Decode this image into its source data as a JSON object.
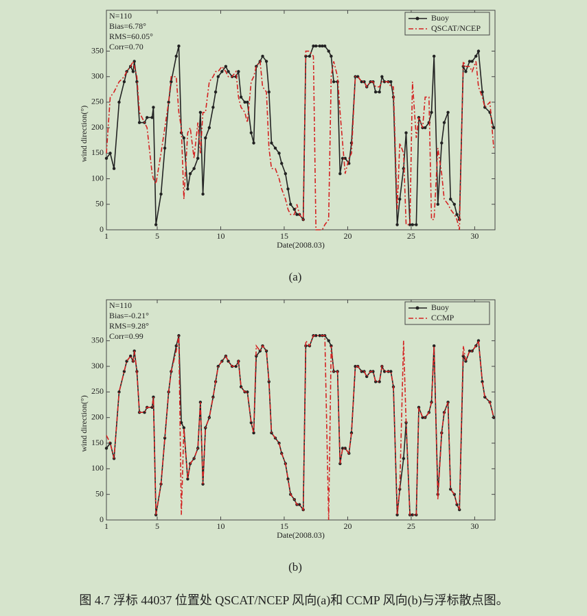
{
  "chart_data": [
    {
      "type": "line",
      "panel": "(a)",
      "xlabel": "Date(2008.03)",
      "ylabel": "wind direction(°)",
      "annotations": [
        "N=110",
        "Bias=6.78°",
        "RMS=60.05°",
        "Corr=0.70"
      ],
      "legend": "upper right",
      "xlim": [
        1,
        31.6
      ],
      "xticks": [
        1,
        5,
        10,
        15,
        20,
        25,
        30
      ],
      "ylim": [
        0,
        430
      ],
      "yticks": [
        0,
        50,
        100,
        150,
        200,
        250,
        300,
        350
      ],
      "x": [
        1.0,
        1.3,
        1.6,
        2.0,
        2.4,
        2.6,
        2.9,
        3.1,
        3.2,
        3.4,
        3.6,
        4.0,
        4.2,
        4.6,
        4.7,
        4.9,
        5.3,
        5.6,
        5.9,
        6.1,
        6.5,
        6.7,
        6.9,
        7.1,
        7.4,
        7.6,
        7.9,
        8.2,
        8.4,
        8.6,
        8.8,
        9.1,
        9.4,
        9.6,
        9.8,
        10.1,
        10.4,
        10.6,
        10.9,
        11.2,
        11.4,
        11.6,
        11.9,
        12.1,
        12.4,
        12.6,
        12.8,
        13.1,
        13.3,
        13.6,
        13.8,
        14.0,
        14.3,
        14.6,
        14.8,
        15.1,
        15.3,
        15.5,
        15.8,
        16.0,
        16.2,
        16.5,
        16.7,
        17.0,
        17.3,
        17.5,
        17.8,
        18.0,
        18.2,
        18.5,
        18.7,
        18.9,
        19.2,
        19.4,
        19.6,
        19.8,
        20.1,
        20.3,
        20.6,
        20.8,
        21.1,
        21.3,
        21.5,
        21.8,
        22.0,
        22.2,
        22.5,
        22.7,
        22.9,
        23.2,
        23.4,
        23.6,
        23.9,
        24.1,
        24.4,
        24.6,
        24.9,
        25.1,
        25.4,
        25.6,
        25.9,
        26.1,
        26.4,
        26.6,
        26.8,
        27.1,
        27.4,
        27.6,
        27.9,
        28.1,
        28.4,
        28.6,
        28.8,
        29.1,
        29.3,
        29.6,
        29.8,
        30.1,
        30.3,
        30.6,
        30.8,
        31.2,
        31.5
      ],
      "series": [
        {
          "name": "Buoy",
          "color": "#222222",
          "linestyle": "solid",
          "marker": true,
          "values": [
            140,
            150,
            120,
            250,
            290,
            310,
            320,
            310,
            330,
            290,
            210,
            210,
            220,
            220,
            240,
            10,
            70,
            160,
            250,
            290,
            340,
            360,
            190,
            180,
            80,
            110,
            120,
            140,
            230,
            70,
            180,
            200,
            240,
            270,
            300,
            310,
            320,
            310,
            300,
            300,
            310,
            260,
            250,
            250,
            190,
            170,
            320,
            330,
            340,
            330,
            270,
            170,
            160,
            150,
            130,
            110,
            80,
            50,
            40,
            30,
            30,
            20,
            340,
            340,
            360,
            360,
            360,
            360,
            360,
            350,
            340,
            290,
            290,
            110,
            140,
            140,
            130,
            170,
            300,
            300,
            290,
            290,
            280,
            290,
            290,
            270,
            270,
            300,
            290,
            290,
            290,
            260,
            10,
            60,
            120,
            190,
            10,
            10,
            10,
            220,
            200,
            200,
            210,
            230,
            340,
            50,
            170,
            210,
            230,
            60,
            50,
            30,
            20,
            320,
            310,
            330,
            330,
            340,
            350,
            270,
            240,
            230,
            200
          ]
        },
        {
          "name": "QSCAT/NCEP",
          "color": "#d42020",
          "linestyle": "dashdot",
          "marker": false,
          "values": [
            150,
            260,
            270,
            290,
            300,
            310,
            320,
            330,
            320,
            300,
            230,
            210,
            200,
            110,
            100,
            90,
            150,
            200,
            250,
            300,
            300,
            230,
            200,
            60,
            190,
            200,
            140,
            210,
            150,
            230,
            230,
            290,
            300,
            310,
            310,
            320,
            310,
            300,
            300,
            310,
            260,
            240,
            230,
            210,
            290,
            300,
            320,
            330,
            280,
            270,
            160,
            120,
            120,
            100,
            80,
            60,
            40,
            30,
            30,
            50,
            30,
            20,
            350,
            350,
            340,
            0,
            0,
            0,
            10,
            20,
            300,
            330,
            300,
            230,
            170,
            110,
            140,
            150,
            300,
            300,
            290,
            290,
            280,
            290,
            290,
            280,
            280,
            290,
            290,
            290,
            280,
            280,
            40,
            170,
            150,
            10,
            10,
            290,
            180,
            220,
            200,
            260,
            260,
            20,
            20,
            160,
            110,
            60,
            50,
            40,
            30,
            20,
            0,
            330,
            320,
            320,
            310,
            330,
            280,
            260,
            240,
            250,
            160
          ]
        }
      ]
    },
    {
      "type": "line",
      "panel": "(b)",
      "xlabel": "Date(2008.03)",
      "ylabel": "wind direction(°)",
      "annotations": [
        "N=110",
        "Bias=-0.21°",
        "RMS=9.28°",
        "Corr=0.99"
      ],
      "legend": "upper right",
      "xlim": [
        1,
        31.6
      ],
      "xticks": [
        1,
        5,
        10,
        15,
        20,
        25,
        30
      ],
      "ylim": [
        0,
        430
      ],
      "yticks": [
        0,
        50,
        100,
        150,
        200,
        250,
        300,
        350
      ],
      "x": [
        1.0,
        1.3,
        1.6,
        2.0,
        2.4,
        2.6,
        2.9,
        3.1,
        3.2,
        3.4,
        3.6,
        4.0,
        4.2,
        4.6,
        4.7,
        4.9,
        5.3,
        5.6,
        5.9,
        6.1,
        6.5,
        6.7,
        6.9,
        7.1,
        7.4,
        7.6,
        7.9,
        8.2,
        8.4,
        8.6,
        8.8,
        9.1,
        9.4,
        9.6,
        9.8,
        10.1,
        10.4,
        10.6,
        10.9,
        11.2,
        11.4,
        11.6,
        11.9,
        12.1,
        12.4,
        12.6,
        12.8,
        13.1,
        13.3,
        13.6,
        13.8,
        14.0,
        14.3,
        14.6,
        14.8,
        15.1,
        15.3,
        15.5,
        15.8,
        16.0,
        16.2,
        16.5,
        16.7,
        17.0,
        17.3,
        17.5,
        17.8,
        18.0,
        18.2,
        18.5,
        18.7,
        18.9,
        19.2,
        19.4,
        19.6,
        19.8,
        20.1,
        20.3,
        20.6,
        20.8,
        21.1,
        21.3,
        21.5,
        21.8,
        22.0,
        22.2,
        22.5,
        22.7,
        22.9,
        23.2,
        23.4,
        23.6,
        23.9,
        24.1,
        24.4,
        24.6,
        24.9,
        25.1,
        25.4,
        25.6,
        25.9,
        26.1,
        26.4,
        26.6,
        26.8,
        27.1,
        27.4,
        27.6,
        27.9,
        28.1,
        28.4,
        28.6,
        28.8,
        29.1,
        29.3,
        29.6,
        29.8,
        30.1,
        30.3,
        30.6,
        30.8,
        31.2,
        31.5
      ],
      "series": [
        {
          "name": "Buoy",
          "color": "#222222",
          "linestyle": "solid",
          "marker": true,
          "values": [
            140,
            150,
            120,
            250,
            290,
            310,
            320,
            310,
            330,
            290,
            210,
            210,
            220,
            220,
            240,
            10,
            70,
            160,
            250,
            290,
            340,
            360,
            190,
            180,
            80,
            110,
            120,
            140,
            230,
            70,
            180,
            200,
            240,
            270,
            300,
            310,
            320,
            310,
            300,
            300,
            310,
            260,
            250,
            250,
            190,
            170,
            320,
            330,
            340,
            330,
            270,
            170,
            160,
            150,
            130,
            110,
            80,
            50,
            40,
            30,
            30,
            20,
            340,
            340,
            360,
            360,
            360,
            360,
            360,
            350,
            340,
            290,
            290,
            110,
            140,
            140,
            130,
            170,
            300,
            300,
            290,
            290,
            280,
            290,
            290,
            270,
            270,
            300,
            290,
            290,
            290,
            260,
            10,
            60,
            120,
            190,
            10,
            10,
            10,
            220,
            200,
            200,
            210,
            230,
            340,
            50,
            170,
            210,
            230,
            60,
            50,
            30,
            20,
            320,
            310,
            330,
            330,
            340,
            350,
            270,
            240,
            230,
            200
          ]
        },
        {
          "name": "CCMP",
          "color": "#d42020",
          "linestyle": "dashdot",
          "marker": false,
          "values": [
            165,
            150,
            120,
            250,
            290,
            310,
            320,
            310,
            330,
            290,
            210,
            210,
            220,
            220,
            240,
            10,
            70,
            160,
            250,
            290,
            330,
            360,
            10,
            180,
            80,
            110,
            120,
            140,
            230,
            70,
            180,
            200,
            240,
            270,
            300,
            310,
            320,
            310,
            300,
            300,
            310,
            260,
            250,
            250,
            190,
            170,
            340,
            330,
            340,
            330,
            270,
            170,
            160,
            150,
            130,
            110,
            80,
            50,
            40,
            30,
            30,
            20,
            350,
            340,
            360,
            360,
            360,
            360,
            360,
            0,
            340,
            290,
            290,
            110,
            140,
            140,
            130,
            170,
            300,
            300,
            290,
            290,
            280,
            290,
            290,
            270,
            270,
            300,
            290,
            290,
            290,
            260,
            10,
            60,
            350,
            190,
            10,
            10,
            10,
            220,
            200,
            200,
            210,
            230,
            340,
            40,
            170,
            210,
            230,
            60,
            50,
            30,
            20,
            340,
            310,
            330,
            330,
            340,
            350,
            270,
            240,
            230,
            200
          ]
        }
      ]
    }
  ],
  "caption": "图 4.7  浮标 44037 位置处 QSCAT/NCEP 风向(a)和 CCMP 风向(b)与浮标散点图。"
}
